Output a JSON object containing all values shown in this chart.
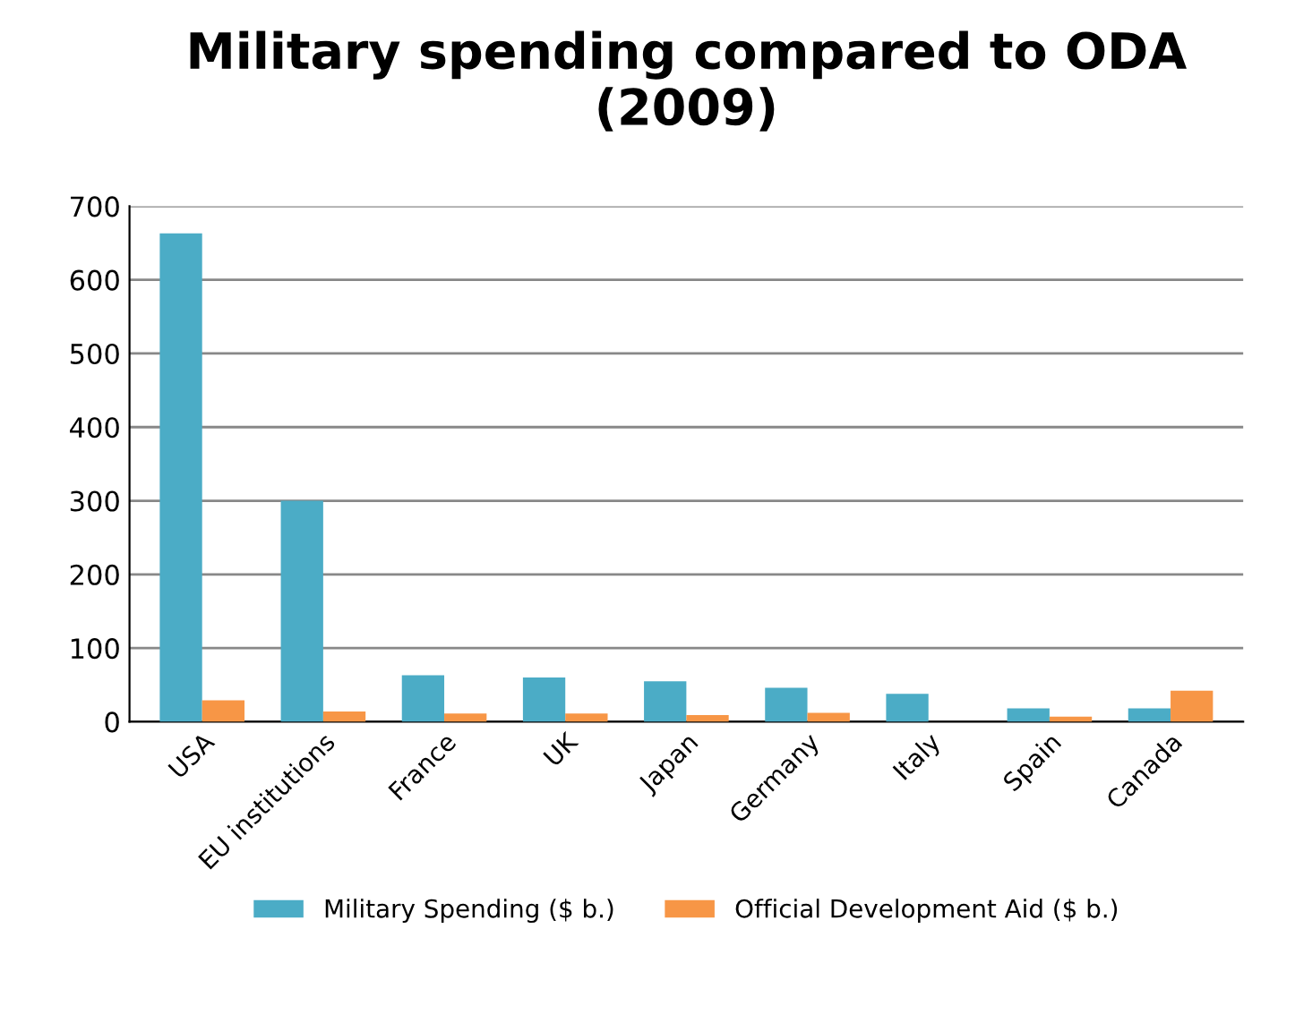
{
  "chart_data": {
    "type": "bar",
    "title": "Military spending compared to ODA\n(2009)",
    "categories": [
      "USA",
      "EU institutions",
      "France",
      "UK",
      "Japan",
      "Germany",
      "Italy",
      "Spain",
      "Canada"
    ],
    "series": [
      {
        "name": "Military Spending ($ b.)",
        "color": "#4bacc6",
        "values": [
          663,
          300,
          63,
          60,
          55,
          46,
          38,
          18,
          18
        ]
      },
      {
        "name": "Official Development Aid ($ b.)",
        "color": "#f79646",
        "values": [
          29,
          14,
          11,
          11,
          9,
          12,
          null,
          7,
          42
        ]
      }
    ],
    "ylim": [
      0,
      700
    ],
    "yticks": [
      0,
      100,
      200,
      300,
      400,
      500,
      600,
      700
    ],
    "grid": "y",
    "legend": "bottom"
  }
}
